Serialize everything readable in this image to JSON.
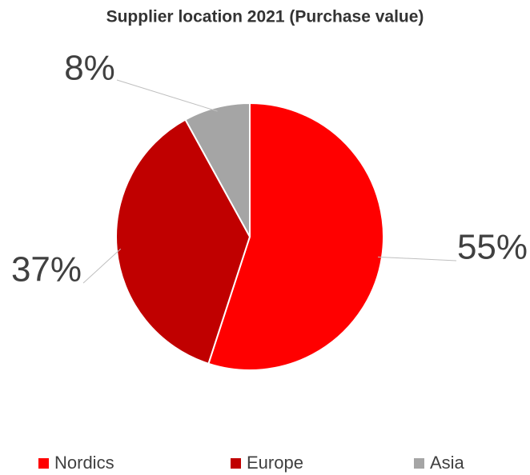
{
  "chart_data": {
    "type": "pie",
    "title": "Supplier location 2021 (Purchase value)",
    "categories": [
      "Nordics",
      "Europe",
      "Asia"
    ],
    "values": [
      55,
      37,
      8
    ],
    "value_labels": [
      "55%",
      "37%",
      "8%"
    ],
    "colors": [
      "#ff0000",
      "#c00000",
      "#a5a5a5"
    ],
    "legend": "bottom"
  }
}
